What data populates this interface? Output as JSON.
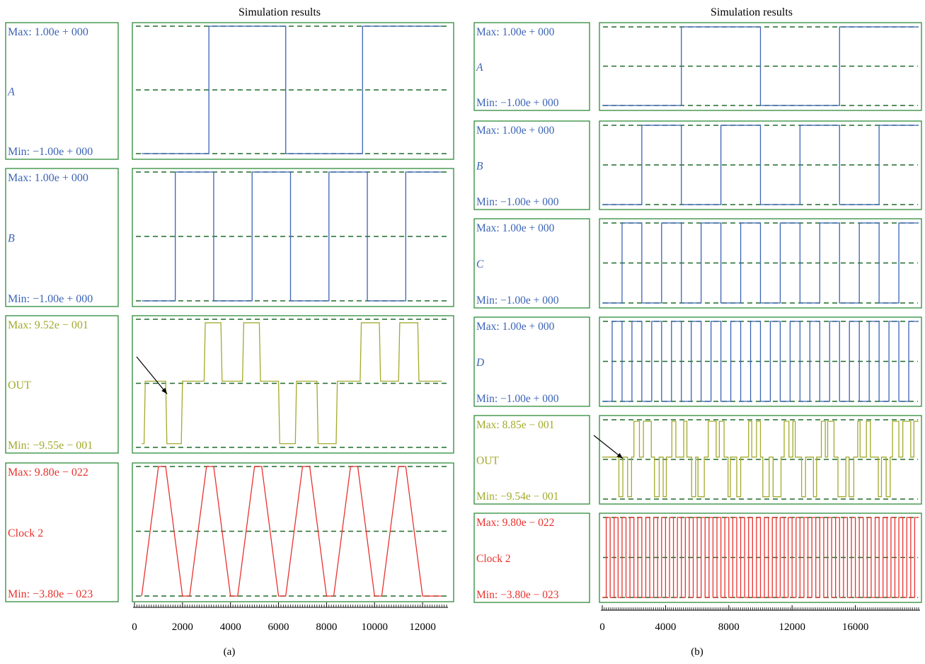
{
  "colors": {
    "frame": "#2e8b3a",
    "blue": "#3b63b5",
    "olive": "#a3aa2c",
    "red": "#e8322e",
    "midline": "#1f6b2a",
    "axis": "#000000"
  },
  "panels_text": {
    "a": {
      "title": "Simulation results",
      "caption": "(a)"
    },
    "b": {
      "title": "Simulation results",
      "caption": "(b)"
    }
  },
  "chart_data": [
    {
      "type": "line",
      "title": "Simulation results",
      "caption": "(a)",
      "xlim": [
        0,
        13000
      ],
      "xticks": [
        "0",
        "2000",
        "4000",
        "6000",
        "8000",
        "10000",
        "12000"
      ],
      "traces": [
        {
          "name": "A",
          "color": "#3b63b5",
          "max_label": "Max: 1.00e + 000",
          "min_label": "Min: −1.00e + 000",
          "ylim": [
            -1,
            1
          ],
          "shape": "linear",
          "x": [
            300,
            3100,
            3100,
            6300,
            6300,
            9500,
            9500,
            12800
          ],
          "y": [
            -1,
            -1,
            1,
            1,
            -1,
            -1,
            1,
            1
          ]
        },
        {
          "name": "B",
          "color": "#3b63b5",
          "max_label": "Max: 1.00e + 000",
          "min_label": "Min: −1.00e + 000",
          "ylim": [
            -1,
            1
          ],
          "shape": "linear",
          "x": [
            300,
            1700,
            1700,
            3300,
            3300,
            4900,
            4900,
            6500,
            6500,
            8100,
            8100,
            9700,
            9700,
            11300,
            11300,
            12800
          ],
          "y": [
            -1,
            -1,
            1,
            1,
            -1,
            -1,
            1,
            1,
            -1,
            -1,
            1,
            1,
            -1,
            -1,
            1,
            1
          ]
        },
        {
          "name": "OUT",
          "color": "#a3aa2c",
          "max_label": "Max: 9.52e − 001",
          "min_label": "Min: −9.55e − 001",
          "ylim": [
            -0.955,
            0.952
          ],
          "shape": "linear",
          "x": [
            300,
            400,
            450,
            1300,
            1350,
            1950,
            2000,
            2900,
            2950,
            3600,
            3650,
            4500,
            4550,
            5200,
            5250,
            6000,
            6050,
            6700,
            6750,
            7600,
            7650,
            8400,
            8450,
            9400,
            9450,
            10200,
            10250,
            11000,
            11050,
            11800,
            11850,
            12800
          ],
          "y": [
            -0.9,
            -0.9,
            0.03,
            0.03,
            -0.9,
            -0.9,
            0.03,
            0.03,
            0.9,
            0.9,
            0.03,
            0.03,
            0.9,
            0.9,
            0.03,
            0.03,
            -0.9,
            -0.9,
            0.03,
            0.03,
            -0.9,
            -0.9,
            0.03,
            0.03,
            0.9,
            0.9,
            0.03,
            0.03,
            0.9,
            0.9,
            0.03,
            0.03
          ]
        },
        {
          "name": "Clock 2",
          "color": "#e8322e",
          "max_label": "Max: 9.80e − 022",
          "min_label": "Min: −3.80e − 023",
          "ylim": [
            -3.8e-23,
            9.8e-22
          ],
          "shape": "trapezoid",
          "x": [
            300,
            1000,
            1300,
            2000,
            2300,
            3000,
            3300,
            4000,
            4300,
            5000,
            5300,
            6000,
            6300,
            7000,
            7300,
            8000,
            8300,
            9000,
            9300,
            10000,
            10300,
            11000,
            11300,
            12000,
            12300,
            12800
          ],
          "y": [
            -3.8e-23,
            9.8e-22,
            9.8e-22,
            -3.8e-23,
            -3.8e-23,
            9.8e-22,
            9.8e-22,
            -3.8e-23,
            -3.8e-23,
            9.8e-22,
            9.8e-22,
            -3.8e-23,
            -3.8e-23,
            9.8e-22,
            9.8e-22,
            -3.8e-23,
            -3.8e-23,
            9.8e-22,
            9.8e-22,
            -3.8e-23,
            -3.8e-23,
            9.8e-22,
            9.8e-22,
            -3.8e-23,
            -3.8e-23,
            -3.8e-23
          ]
        }
      ]
    },
    {
      "type": "line",
      "title": "Simulation results",
      "caption": "(b)",
      "xlim": [
        0,
        20000
      ],
      "xticks": [
        "0",
        "4000",
        "8000",
        "12000",
        "16000"
      ],
      "traces": [
        {
          "name": "A",
          "color": "#3b63b5",
          "max_label": "Max: 1.00e + 000",
          "min_label": "Min: −1.00e + 000",
          "ylim": [
            -1,
            1
          ],
          "shape": "linear",
          "x": [
            0,
            5000,
            5000,
            10000,
            10000,
            15000,
            15000,
            20000
          ],
          "y": [
            -1,
            -1,
            1,
            1,
            -1,
            -1,
            1,
            1
          ]
        },
        {
          "name": "B",
          "color": "#3b63b5",
          "max_label": "Max: 1.00e + 000",
          "min_label": "Min: −1.00e + 000",
          "ylim": [
            -1,
            1
          ],
          "shape": "linear",
          "x": [
            0,
            2500,
            2500,
            5000,
            5000,
            7500,
            7500,
            10000,
            10000,
            12500,
            12500,
            15000,
            15000,
            17500,
            17500,
            20000
          ],
          "y": [
            -1,
            -1,
            1,
            1,
            -1,
            -1,
            1,
            1,
            -1,
            -1,
            1,
            1,
            -1,
            -1,
            1,
            1
          ]
        },
        {
          "name": "C",
          "color": "#3b63b5",
          "max_label": "Max: 1.00e + 000",
          "min_label": "Min: −1.00e + 000",
          "ylim": [
            -1,
            1
          ],
          "shape": "square",
          "start": 0,
          "period": 2500,
          "end": 20000
        },
        {
          "name": "D",
          "color": "#3b63b5",
          "max_label": "Max: 1.00e + 000",
          "min_label": "Min: −1.00e + 000",
          "ylim": [
            -1,
            1
          ],
          "shape": "square",
          "start": 0,
          "period": 1250,
          "end": 20000
        },
        {
          "name": "OUT",
          "color": "#a3aa2c",
          "max_label": "Max: 8.85e − 001",
          "min_label": "Min: −9.54e − 001",
          "ylim": [
            -0.954,
            0.885
          ],
          "shape": "linear",
          "x": [
            0,
            1050,
            1050,
            1300,
            1300,
            1600,
            1600,
            1850,
            1850,
            2000,
            2000,
            2350,
            2350,
            2600,
            2600,
            3100,
            3100,
            3300,
            3300,
            3600,
            3600,
            3850,
            3850,
            4050,
            4050,
            4400,
            4400,
            4650,
            4650,
            5150,
            5150,
            5350,
            5350,
            5650,
            5650,
            5900,
            5900,
            6050,
            6050,
            6450,
            6450,
            6700,
            6700,
            7200,
            7200,
            7400,
            7400,
            7700,
            7700,
            7950,
            7950,
            8100,
            8100,
            8500,
            8500,
            8750,
            8750,
            9250,
            9250,
            9450,
            9450,
            9750,
            9750,
            10000,
            10000,
            10150,
            10150,
            10550,
            10550,
            10800,
            10800,
            11300,
            11300,
            11500,
            11500,
            11800,
            11800,
            12050,
            12050,
            12200,
            12200,
            12600,
            12600,
            12850,
            12850,
            13350,
            13350,
            13550,
            13550,
            13850,
            13850,
            14100,
            14100,
            14250,
            14250,
            14650,
            14650,
            14900,
            14900,
            15400,
            15400,
            15600,
            15600,
            15900,
            15900,
            16150,
            16150,
            16300,
            16300,
            16700,
            16700,
            16950,
            16950,
            17450,
            17450,
            17650,
            17650,
            17950,
            17950,
            18200,
            18200,
            18350,
            18350,
            18750,
            18750,
            19000,
            19000,
            19500,
            19500,
            19700,
            19700,
            20000
          ],
          "y": [
            0.02,
            0.02,
            -0.9,
            -0.9,
            0.02,
            0.02,
            -0.9,
            -0.9,
            0.02,
            0.02,
            0.85,
            0.85,
            0.02,
            0.02,
            0.85,
            0.85,
            0.02,
            0.02,
            -0.9,
            -0.9,
            0.02,
            0.02,
            -0.9,
            -0.9,
            0.02,
            0.02,
            0.85,
            0.85,
            0.02,
            0.02,
            0.85,
            0.85,
            0.02,
            0.02,
            -0.9,
            -0.9,
            0.02,
            0.02,
            -0.9,
            -0.9,
            0.02,
            0.02,
            0.85,
            0.85,
            0.02,
            0.02,
            0.85,
            0.85,
            0.02,
            0.02,
            -0.9,
            -0.9,
            0.02,
            0.02,
            -0.9,
            -0.9,
            0.02,
            0.02,
            0.85,
            0.85,
            0.02,
            0.02,
            0.85,
            0.85,
            0.02,
            0.02,
            -0.9,
            -0.9,
            0.02,
            0.02,
            -0.9,
            -0.9,
            0.02,
            0.02,
            0.85,
            0.85,
            0.02,
            0.02,
            0.85,
            0.85,
            0.02,
            0.02,
            -0.9,
            -0.9,
            0.02,
            0.02,
            -0.9,
            -0.9,
            0.02,
            0.02,
            0.85,
            0.85,
            0.02,
            0.02,
            0.85,
            0.85,
            0.02,
            0.02,
            -0.9,
            -0.9,
            0.02,
            0.02,
            -0.9,
            -0.9,
            0.02,
            0.02,
            0.85,
            0.85,
            0.02,
            0.02,
            0.85,
            0.85,
            0.02,
            0.02,
            -0.9,
            -0.9,
            0.02,
            0.02,
            -0.9,
            -0.9,
            0.02,
            0.02,
            0.85,
            0.85,
            0.02,
            0.02,
            0.85,
            0.85,
            0.02,
            0.02,
            0.85,
            0.85
          ]
        },
        {
          "name": "Clock 2",
          "color": "#e8322e",
          "max_label": "Max: 9.80e − 022",
          "min_label": "Min: −3.80e − 023",
          "ylim": [
            -3.8e-23,
            9.8e-22
          ],
          "shape": "square",
          "start": 0,
          "period": 500,
          "end": 20000
        }
      ]
    }
  ]
}
